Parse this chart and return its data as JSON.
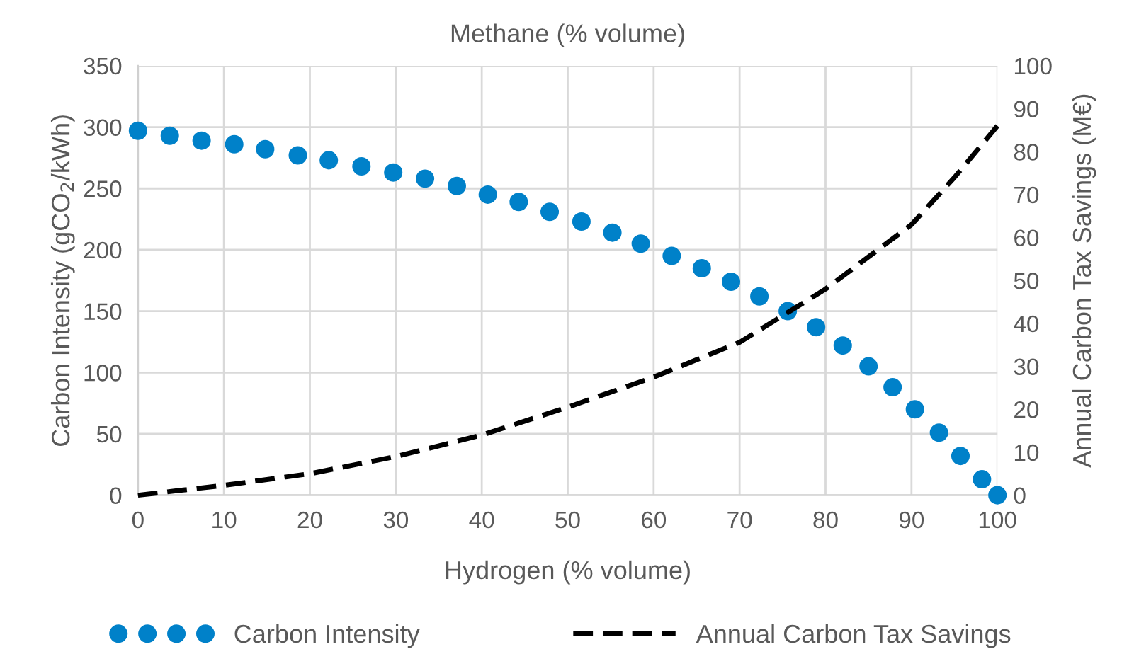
{
  "chart_data": {
    "type": "scatter",
    "xlabel": "Hydrogen (% volume)",
    "x2label": "Methane (% volume)",
    "ylabel": "Carbon Intensity (gCO$_{2}$/kWh)",
    "y2label": "Annual Carbon Tax Savings (M€)",
    "xlim": [
      0,
      100
    ],
    "xticks": [
      0,
      10,
      20,
      30,
      40,
      50,
      60,
      70,
      80,
      90,
      100
    ],
    "ylim": [
      0,
      350
    ],
    "yticks": [
      0,
      50,
      100,
      150,
      200,
      250,
      300,
      350
    ],
    "y2lim": [
      0,
      100
    ],
    "y2ticks": [
      0,
      10,
      20,
      30,
      40,
      50,
      60,
      70,
      80,
      90,
      100
    ],
    "grid": true,
    "legend": "bottom",
    "series": [
      {
        "name": "Carbon Intensity",
        "color": "#0081c9",
        "marker": "circle",
        "x": [
          0,
          3.7,
          7.4,
          11.2,
          14.8,
          18.6,
          22.2,
          26.0,
          29.7,
          33.4,
          37.1,
          40.7,
          44.3,
          47.9,
          51.6,
          55.2,
          58.5,
          62.1,
          65.6,
          69.0,
          72.3,
          75.6,
          78.9,
          82.0,
          85.0,
          87.8,
          90.4,
          93.2,
          95.7,
          98.2,
          100
        ],
        "values": [
          297,
          293,
          289,
          286,
          282,
          277,
          273,
          268,
          263,
          258,
          252,
          245,
          239,
          231,
          223,
          214,
          205,
          195,
          185,
          174,
          162,
          150,
          137,
          122,
          105,
          88,
          70,
          51,
          32,
          13,
          0
        ]
      },
      {
        "name": "Annual Carbon Tax Savings",
        "type": "line",
        "axis": "y2",
        "color": "#000000",
        "line_style": "dashed",
        "marker": "none",
        "x": [
          0,
          10,
          20,
          30,
          40,
          50,
          60,
          70,
          80,
          90,
          95,
          100
        ],
        "values": [
          0,
          2.3,
          5,
          9,
          14,
          20.5,
          27.5,
          35.6,
          48,
          63,
          74,
          86
        ]
      }
    ]
  }
}
